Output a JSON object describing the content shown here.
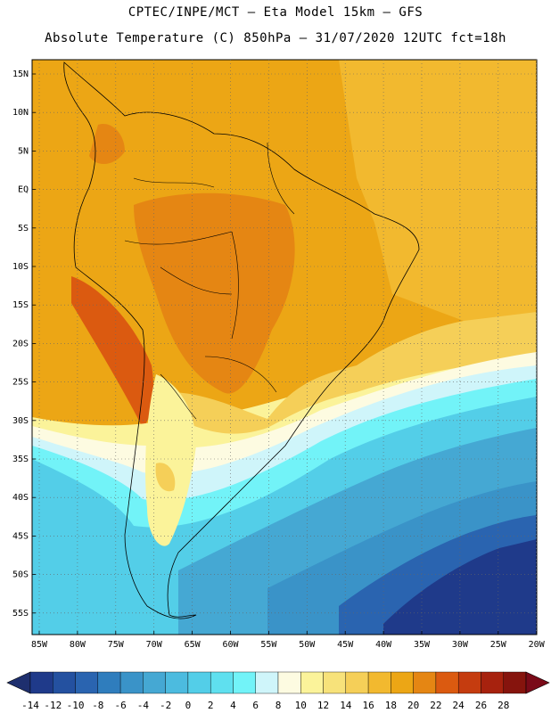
{
  "header": {
    "title_line1": "CPTEC/INPE/MCT –  Eta Model 15km – GFS",
    "title_line2": "Absolute Temperature (C) 850hPa – 31/07/2020 12UTC fct=18h"
  },
  "axes": {
    "lat_labels": [
      "15N",
      "10N",
      "5N",
      "EQ",
      "5S",
      "10S",
      "15S",
      "20S",
      "25S",
      "30S",
      "35S",
      "40S",
      "45S",
      "50S",
      "55S"
    ],
    "lon_labels": [
      "85W",
      "80W",
      "75W",
      "70W",
      "65W",
      "60W",
      "55W",
      "50W",
      "45W",
      "40W",
      "35W",
      "30W",
      "25W",
      "20W"
    ]
  },
  "colorbar": {
    "labels": [
      "-14",
      "-12",
      "-10",
      "-8",
      "-6",
      "-4",
      "-2",
      "0",
      "2",
      "4",
      "6",
      "8",
      "10",
      "12",
      "14",
      "16",
      "18",
      "20",
      "22",
      "24",
      "26",
      "28"
    ],
    "under_color": "#1e2f6e",
    "over_color": "#7a0a18",
    "colors": [
      "#1f3a8a",
      "#2451a0",
      "#2a64b0",
      "#2f7dbd",
      "#3a93c8",
      "#45a8d3",
      "#4cbbdf",
      "#53cee8",
      "#5fe0ef",
      "#72f3f8",
      "#cff5fa",
      "#fdfbe1",
      "#fbf39a",
      "#f7e27a",
      "#f5cf58",
      "#f2b92f",
      "#eca615",
      "#e58613",
      "#db5a10",
      "#c53c0f",
      "#a7220e",
      "#86140d"
    ]
  },
  "map_colors": {
    "deep_cold": "#1f3a8a",
    "cold": "#2f7dbd",
    "cool": "#45a8d3",
    "cyan": "#53cee8",
    "light_cyan": "#72f3f8",
    "pale": "#cff5fa",
    "cream": "#fdfbe1",
    "pale_yellow": "#fbf39a",
    "yellow": "#f5cf58",
    "orange_light": "#f2b92f",
    "orange": "#eca615",
    "dark_orange": "#e58613",
    "hot": "#db5a10"
  }
}
